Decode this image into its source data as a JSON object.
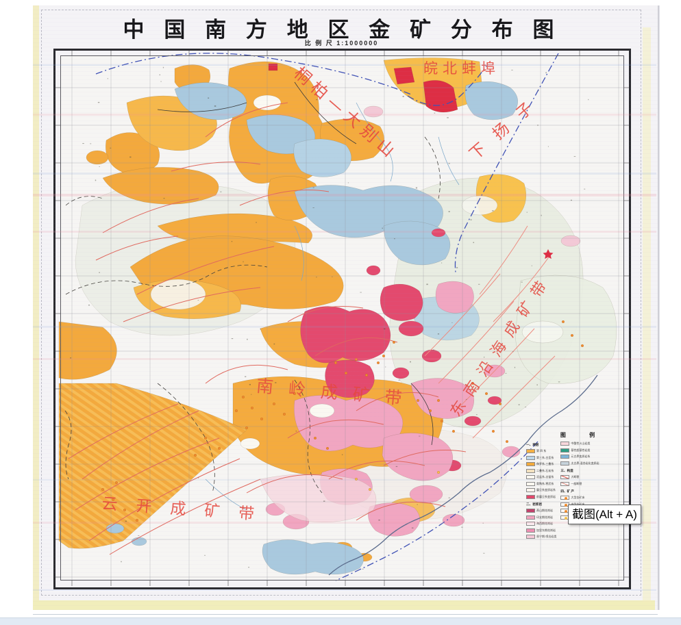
{
  "overlay": {
    "tooltip": "截图(Alt + A)"
  },
  "map_sheet": {
    "title": "中 国 南 方 地 区 金 矿 分 布 图",
    "scale_label": "比 例 尺",
    "scale_value": "1:1000000",
    "region_labels": {
      "wanbei": "皖北蚌埠",
      "tongbai_dabieshan": "桐柏—大别山",
      "xia_yangzi": "下扬子",
      "nanling": "南岭成矿带",
      "dongnan_yanhai": "东南沿海成矿带",
      "yunkai": "云开成矿带"
    },
    "legend": {
      "title": "图 例",
      "col_left": [
        {
          "type": "header",
          "text": "一、地层"
        },
        {
          "type": "swatch",
          "color": "#f5b043",
          "label": "第 四 系"
        },
        {
          "type": "swatch",
          "color": "#bcd6e8",
          "label": "第三系-白垩系"
        },
        {
          "type": "swatch",
          "color": "#f2a93b",
          "label": "侏罗系-三叠系"
        },
        {
          "type": "swatch",
          "color": "#f3e2c0",
          "label": "二叠系-石炭系"
        },
        {
          "type": "swatch",
          "color": "#faf7ef",
          "label": "泥盆系-志留系"
        },
        {
          "type": "swatch",
          "color": "#faf7ef",
          "label": "奥陶系-寒武系"
        },
        {
          "type": "swatch",
          "color": "#fdf6ee",
          "label": "震旦系变质岩系"
        },
        {
          "type": "swatch",
          "color": "#e2486b",
          "label": "前震旦系变质岩"
        },
        {
          "type": "header",
          "text": "二、岩浆岩"
        },
        {
          "type": "swatch",
          "color": "#c2426b",
          "label": "燕山期花岗岩"
        },
        {
          "type": "swatch",
          "color": "#f2a3be",
          "label": "印支期花岗岩"
        },
        {
          "type": "swatch",
          "color": "#fbeff2",
          "label": "海西期花岗岩"
        },
        {
          "type": "swatch",
          "color": "#ef8fb2",
          "label": "加里东期花岗岩"
        },
        {
          "type": "swatch",
          "color": "#f6c9d8",
          "label": "晋宁期-喷出岩类"
        }
      ],
      "col_right": [
        {
          "type": "swatch",
          "color": "#f8d7dc",
          "label": "中酸性火山岩类"
        },
        {
          "type": "swatch",
          "color": "#2e9e84",
          "label": "基性超基性岩类"
        },
        {
          "type": "swatch",
          "color": "#7fb6d9",
          "label": "元古界变质岩系"
        },
        {
          "type": "swatch",
          "color": "#c7d3db",
          "label": "太古界-混合岩化变质岩"
        },
        {
          "type": "header",
          "text": "三、构造"
        },
        {
          "type": "line",
          "label": "大断裂"
        },
        {
          "type": "line2",
          "label": "一般断裂"
        },
        {
          "type": "header",
          "text": "四、矿 产"
        },
        {
          "type": "dot",
          "color": "#f08c2e",
          "label": "大型金矿床"
        },
        {
          "type": "dot",
          "color": "#f08c2e",
          "label": "中型金矿床"
        },
        {
          "type": "dot",
          "color": "#f08c2e",
          "label": "小型金矿床"
        },
        {
          "type": "dot",
          "color": "#f6c24a",
          "label": "金矿点"
        }
      ]
    }
  }
}
